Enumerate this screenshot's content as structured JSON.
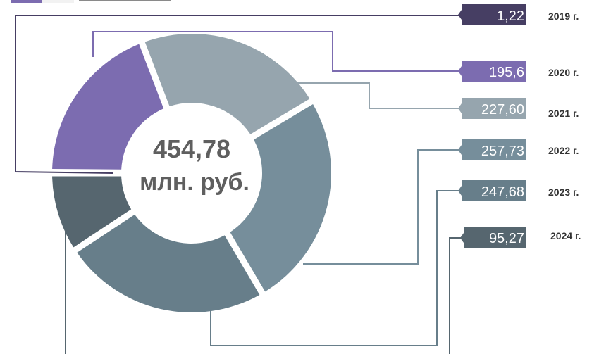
{
  "chart_data": {
    "type": "donut",
    "center": {
      "value": "454,78",
      "unit": "млн. руб."
    },
    "slices": [
      {
        "year": "2019 г.",
        "label": "1,22",
        "value": 1.22,
        "color": "#463e63"
      },
      {
        "year": "2020 г.",
        "label": "195,6",
        "value": 195.6,
        "color": "#7c6cb0"
      },
      {
        "year": "2021 г.",
        "label": "227,60",
        "value": 227.6,
        "color": "#96a5ae"
      },
      {
        "year": "2022 г.",
        "label": "257,73",
        "value": 257.73,
        "color": "#768e9b"
      },
      {
        "year": "2023 г.",
        "label": "247,68",
        "value": 247.68,
        "color": "#677e8a"
      },
      {
        "year": "2024 г.",
        "label": "95,27",
        "value": 95.27,
        "color": "#56666f"
      }
    ],
    "legend_swatches": [
      "#7c6cb0",
      "#f2f2f2",
      "#8a8a8a"
    ]
  }
}
